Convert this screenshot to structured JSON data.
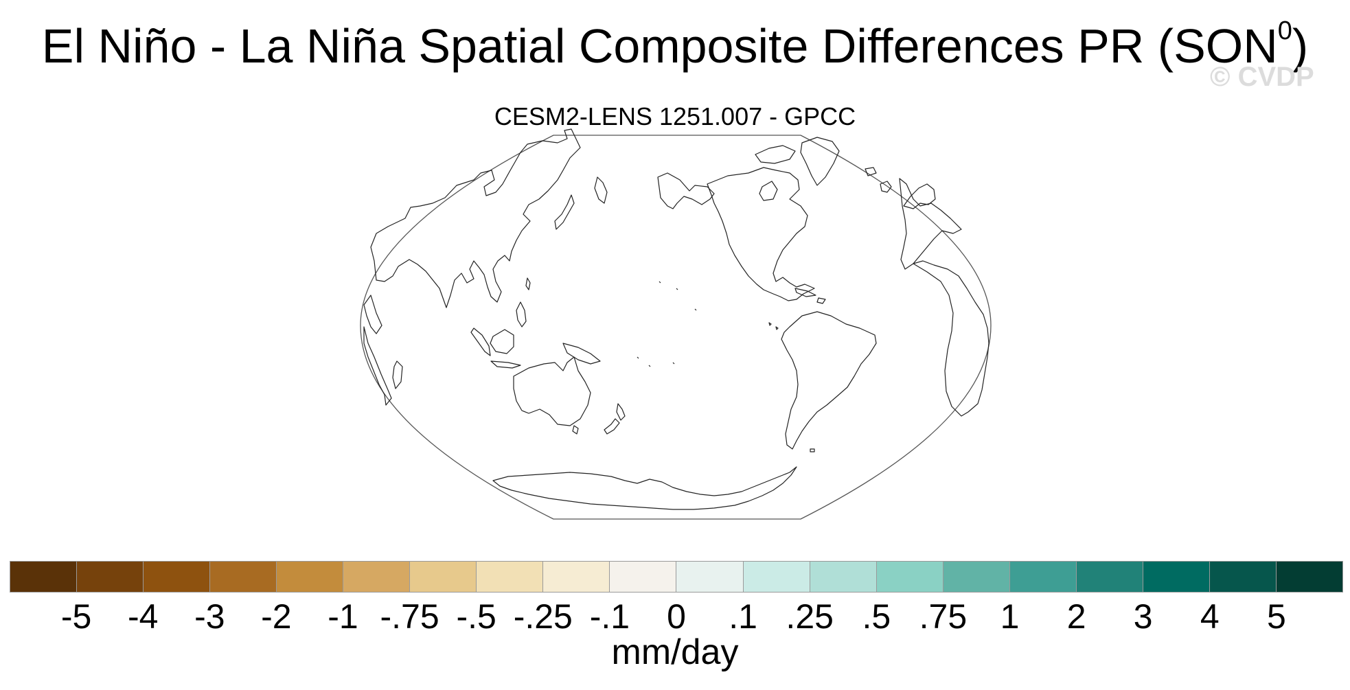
{
  "title": {
    "main": "El Niño - La Niña Spatial Composite Differences PR (SON",
    "superscript": "0",
    "close": ")"
  },
  "watermark": "© CVDP",
  "subtitle": "CESM2-LENS 1251.007 - GPCC",
  "map": {
    "projection": "Robinson",
    "central_longitude": 180,
    "fill": "none",
    "coastline_color": "#222222"
  },
  "colorbar": {
    "units": "mm/day",
    "labels": [
      "-5",
      "-4",
      "-3",
      "-2",
      "-1",
      "-.75",
      "-.5",
      "-.25",
      "-.1",
      "0",
      ".1",
      ".25",
      ".5",
      ".75",
      "1",
      "2",
      "3",
      "4",
      "5"
    ],
    "colors": [
      "#5a3208",
      "#76420c",
      "#8e520f",
      "#a86b22",
      "#c38c3c",
      "#d6a862",
      "#e7c98c",
      "#f2e0b5",
      "#f6ecd3",
      "#f5f2ec",
      "#e8f2ef",
      "#cbebe6",
      "#b0dfd7",
      "#8ad1c4",
      "#61b3a6",
      "#3e9e94",
      "#218278",
      "#006b61",
      "#06564c",
      "#033d33"
    ]
  }
}
